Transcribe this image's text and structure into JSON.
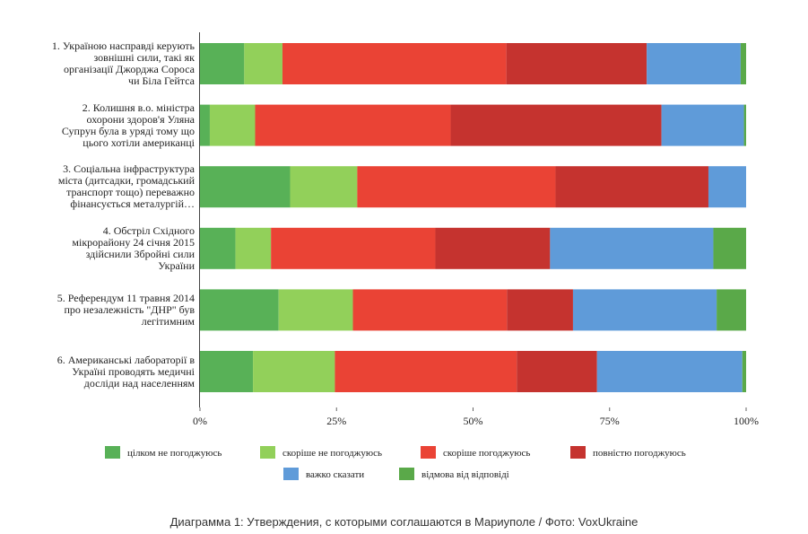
{
  "caption": "Диаграмма 1: Утверждения, с которыми соглашаются в Мариуполе / Фото: VoxUkraine",
  "chart_data": {
    "type": "bar",
    "orientation": "horizontal",
    "stacked": true,
    "percent_stacked": true,
    "grid": false,
    "legend_position": "bottom",
    "x_ticks": [
      "0%",
      "25%",
      "50%",
      "75%",
      "100%"
    ],
    "xlim": [
      0,
      100
    ],
    "categories": [
      "1. Україною насправді керують зовнішні сили, такі як організації Джорджа Сороса чи Біла Гейтса",
      "2. Колишня в.о. міністра охорони здоров'я Уляна Супрун була в уряді тому що цього хотіли американці",
      "3. Соціальна інфраструктура міста (дитсадки, громадський транспорт тощо) переважно фінансується металургій…",
      "4. Обстріл Східного мікрорайону 24 січня 2015 здійснили Збройні сили України",
      "5. Референдум 11 травня 2014 про незалежність \"ДНР\" був легітимним",
      "6. Американські лабораторії в Україні проводять медичні досліди над населенням"
    ],
    "series": [
      {
        "name": "цілком не погоджуюсь",
        "color": "#58b157",
        "values": [
          8.1,
          1.8,
          16.5,
          6.5,
          14.4,
          9.7
        ]
      },
      {
        "name": "скоріше не погоджуюсь",
        "color": "#92d05a",
        "values": [
          7.0,
          8.3,
          12.3,
          6.5,
          13.6,
          15.0
        ]
      },
      {
        "name": "скоріше погоджуюсь",
        "color": "#ea4335",
        "values": [
          41.0,
          35.8,
          36.3,
          30.1,
          28.2,
          33.3
        ]
      },
      {
        "name": "повністю погоджуюсь",
        "color": "#c5332f",
        "values": [
          25.7,
          38.6,
          28.0,
          21.0,
          12.1,
          14.7
        ]
      },
      {
        "name": "важко сказати",
        "color": "#5f9bd9",
        "values": [
          17.2,
          15.1,
          6.9,
          29.9,
          26.3,
          26.6
        ]
      },
      {
        "name": "відмова від відповіді",
        "color": "#5aa949",
        "values": [
          1.0,
          0.4,
          0.0,
          6.0,
          5.4,
          0.7
        ]
      }
    ]
  }
}
